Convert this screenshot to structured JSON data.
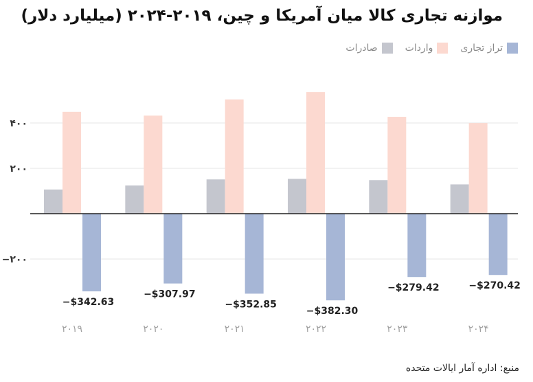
{
  "title": "موازنه تجاری کالا میان آمریکا و چین، ۲۰۱۹-۲۰۲۴ (میلیارد دلار)",
  "source": "منبع: اداره آمار ایالات متحده",
  "colors": {
    "exports": "#c4c6ce",
    "imports": "#fcd9d0",
    "balance": "#a6b6d6",
    "grid": "#e6e6e6",
    "axis": "#222222",
    "year": "#a0a0a0"
  },
  "chart_data": {
    "type": "bar",
    "categories": [
      "۲۰۱۹",
      "۲۰۲۰",
      "۲۰۲۱",
      "۲۰۲۲",
      "۲۰۲۳",
      "۲۰۲۴"
    ],
    "series": [
      {
        "key": "exports",
        "name": "صادرات",
        "values": [
          106.6,
          124.5,
          151.1,
          153.8,
          147.8,
          129.1
        ]
      },
      {
        "key": "imports",
        "name": "واردات",
        "values": [
          449.1,
          432.5,
          504.0,
          536.1,
          427.2,
          399.6
        ]
      },
      {
        "key": "balance",
        "name": "تراز تجاری",
        "values": [
          -342.63,
          -307.97,
          -352.85,
          -382.3,
          -279.42,
          -270.42
        ]
      }
    ],
    "data_labels": [
      "−$342.63",
      "−$307.97",
      "−$352.85",
      "−$382.30",
      "−$279.42",
      "−$270.42"
    ],
    "ytick_labels": [
      "−۲۰۰",
      "۲۰۰",
      "۴۰۰"
    ],
    "yticks": [
      -200,
      200,
      400
    ],
    "ylim": [
      -420,
      560
    ],
    "grid": true,
    "legend": "top-right"
  }
}
